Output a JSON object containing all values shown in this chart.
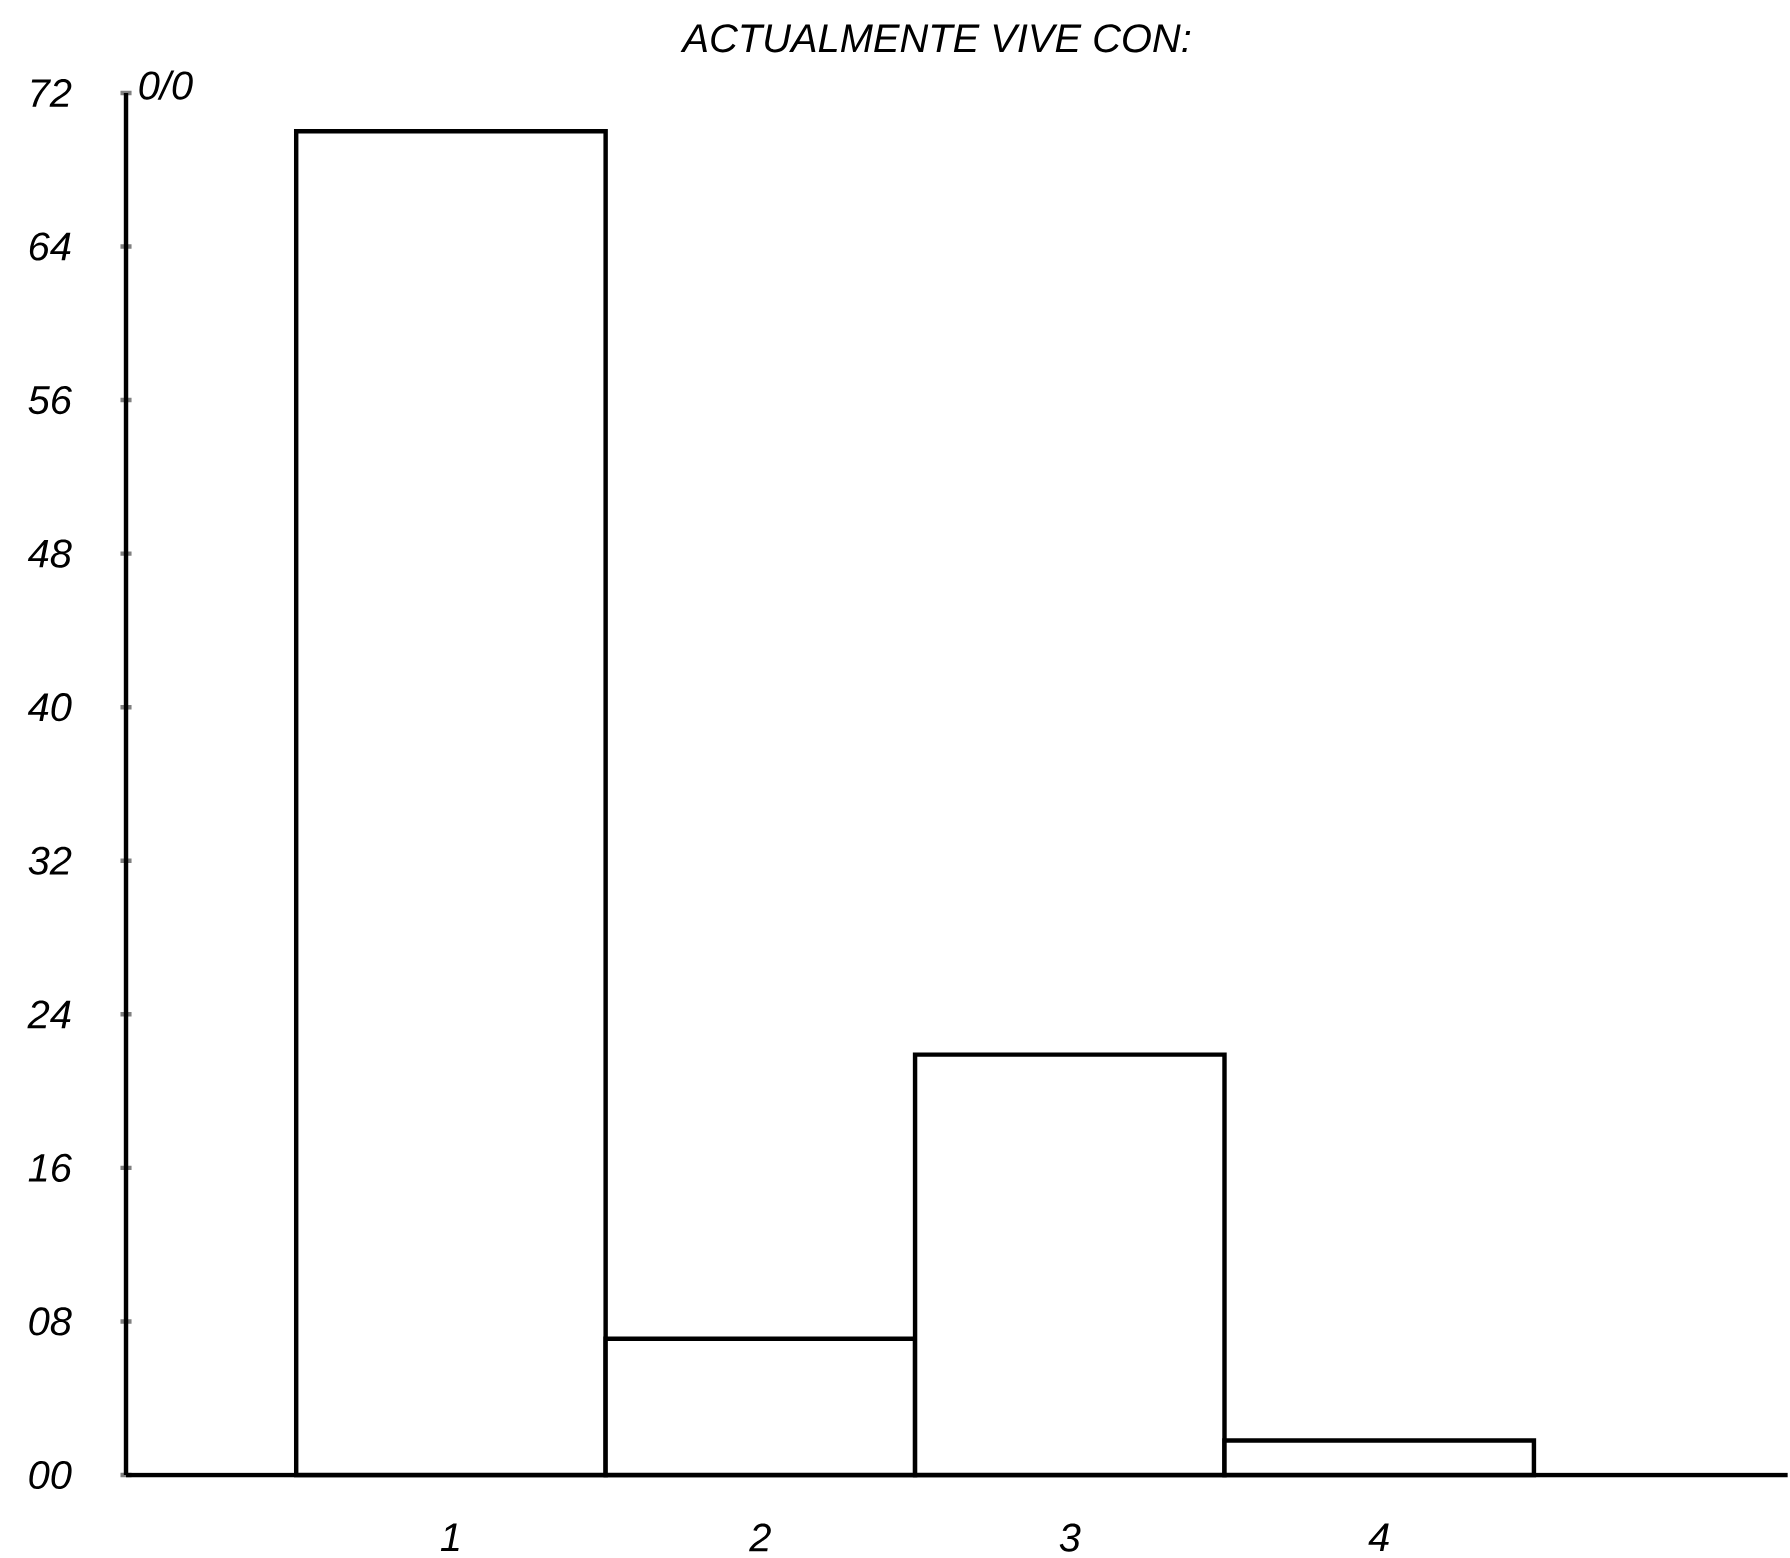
{
  "chart_data": {
    "type": "bar",
    "title": "ACTUALMENTE VIVE CON:",
    "ylabel": "0/0",
    "categories": [
      "1",
      "2",
      "3",
      "4"
    ],
    "values": [
      70,
      7.1,
      21.9,
      1.8
    ],
    "color": "#ffffff",
    "ylim": [
      0,
      72
    ],
    "yticks": [
      {
        "value": 0,
        "label": "00"
      },
      {
        "value": 8,
        "label": "08"
      },
      16,
      24,
      32,
      40,
      48,
      56,
      64,
      72
    ]
  }
}
